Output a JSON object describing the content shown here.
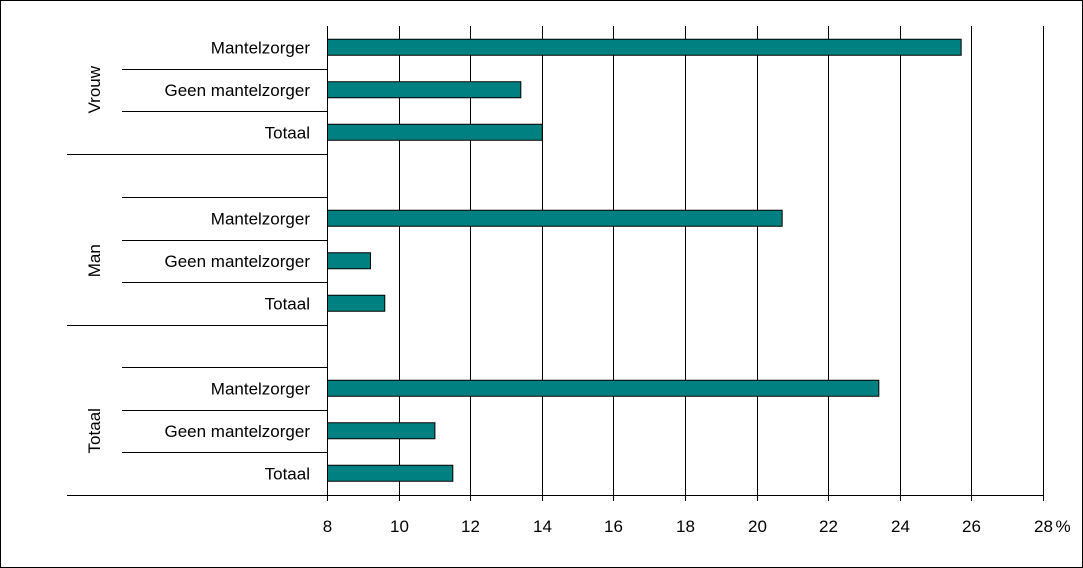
{
  "chart_data": {
    "type": "bar",
    "orientation": "horizontal",
    "title": "",
    "xlabel": "",
    "ylabel": "",
    "unit": "%",
    "xlim": [
      8,
      28
    ],
    "xticks": [
      "8",
      "10",
      "12",
      "14",
      "16",
      "18",
      "20",
      "22",
      "24",
      "26",
      "28"
    ],
    "grid": true,
    "bar_color": "#008080",
    "groups": [
      {
        "name": "Vrouw",
        "categories": [
          "Mantelzorger",
          "Geen mantelzorger",
          "Totaal"
        ],
        "values": [
          25.7,
          13.4,
          14.0
        ]
      },
      {
        "name": "Man",
        "categories": [
          "Mantelzorger",
          "Geen mantelzorger",
          "Totaal"
        ],
        "values": [
          20.7,
          9.2,
          9.6
        ]
      },
      {
        "name": "Totaal",
        "categories": [
          "Mantelzorger",
          "Geen mantelzorger",
          "Totaal"
        ],
        "values": [
          23.4,
          11.0,
          11.5
        ]
      }
    ]
  }
}
